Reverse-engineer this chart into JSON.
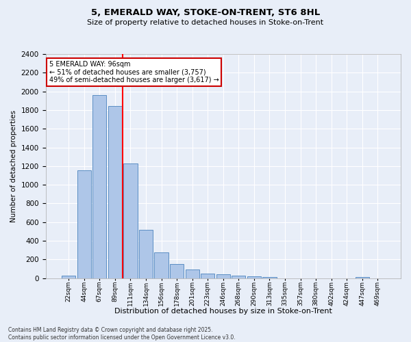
{
  "title_line1": "5, EMERALD WAY, STOKE-ON-TRENT, ST6 8HL",
  "title_line2": "Size of property relative to detached houses in Stoke-on-Trent",
  "xlabel": "Distribution of detached houses by size in Stoke-on-Trent",
  "ylabel": "Number of detached properties",
  "categories": [
    "22sqm",
    "44sqm",
    "67sqm",
    "89sqm",
    "111sqm",
    "134sqm",
    "156sqm",
    "178sqm",
    "201sqm",
    "223sqm",
    "246sqm",
    "268sqm",
    "290sqm",
    "313sqm",
    "335sqm",
    "357sqm",
    "380sqm",
    "402sqm",
    "424sqm",
    "447sqm",
    "469sqm"
  ],
  "values": [
    28,
    1155,
    1960,
    1845,
    1230,
    515,
    275,
    155,
    90,
    50,
    40,
    30,
    20,
    15,
    0,
    0,
    0,
    0,
    0,
    15,
    0
  ],
  "bar_color": "#aec6e8",
  "bar_edge_color": "#5b8ec4",
  "red_line_x": 3.5,
  "annotation_text": "5 EMERALD WAY: 96sqm\n← 51% of detached houses are smaller (3,757)\n49% of semi-detached houses are larger (3,617) →",
  "annotation_box_color": "#ffffff",
  "annotation_box_edge": "#cc0000",
  "ylim": [
    0,
    2400
  ],
  "yticks": [
    0,
    200,
    400,
    600,
    800,
    1000,
    1200,
    1400,
    1600,
    1800,
    2000,
    2200,
    2400
  ],
  "bg_color": "#e8eef8",
  "plot_bg_color": "#e8eef8",
  "grid_color": "#ffffff",
  "footer_line1": "Contains HM Land Registry data © Crown copyright and database right 2025.",
  "footer_line2": "Contains public sector information licensed under the Open Government Licence v3.0."
}
